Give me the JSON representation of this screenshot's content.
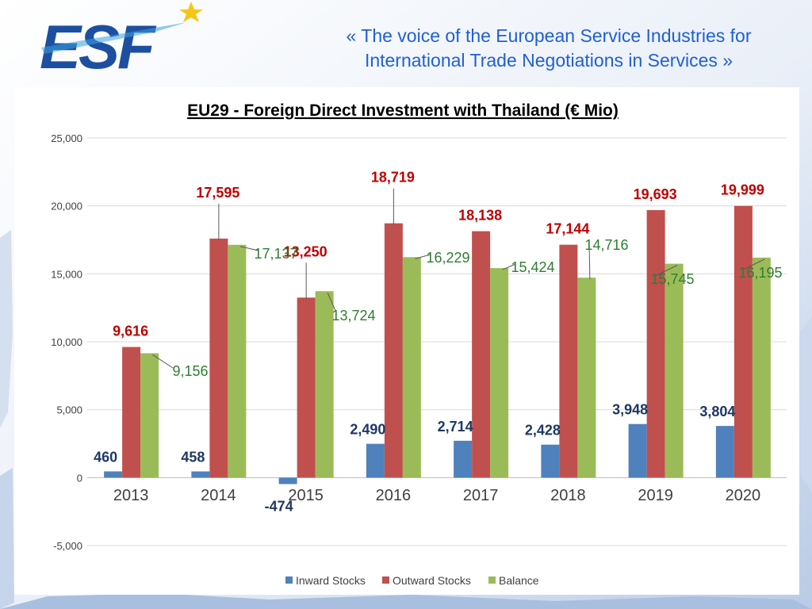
{
  "header": {
    "logo_text": "ESF",
    "tagline_line1": "«  The voice of the European Service Industries for",
    "tagline_line2": "International Trade Negotiations in Services  »"
  },
  "colors": {
    "inward": "#4f81bd",
    "outward": "#c0504d",
    "balance": "#9bbb59",
    "inward_label": "#1f3864",
    "outward_label": "#c00000",
    "balance_label": "#2e7d32",
    "tagline": "#1f5fd6",
    "logo_blue": "#1d4fa0",
    "star": "#f5c518"
  },
  "chart_data": {
    "type": "bar",
    "title": "EU29 - Foreign Direct Investment with Thailand (€ Mio)",
    "xlabel": "",
    "ylabel": "",
    "categories": [
      "2013",
      "2014",
      "2015",
      "2016",
      "2017",
      "2018",
      "2019",
      "2020"
    ],
    "series": [
      {
        "name": "Inward Stocks",
        "values": [
          460,
          458,
          -474,
          2490,
          2714,
          2428,
          3948,
          3804
        ],
        "labels": [
          "460",
          "458",
          "-474",
          "2,490",
          "2,714",
          "2,428",
          "3,948",
          "3,804"
        ]
      },
      {
        "name": "Outward Stocks",
        "values": [
          9616,
          17595,
          13250,
          18719,
          18138,
          17144,
          19693,
          19999
        ],
        "labels": [
          "9,616",
          "17,595",
          "13,250",
          "18,719",
          "18,138",
          "17,144",
          "19,693",
          "19,999"
        ]
      },
      {
        "name": "Balance",
        "values": [
          9156,
          17137,
          13724,
          16229,
          15424,
          14716,
          15745,
          16195
        ],
        "labels": [
          "9,156",
          "17,137",
          "13,724",
          "16,229",
          "15,424",
          "14,716",
          "15,745",
          "16,195"
        ]
      }
    ],
    "ylim": [
      -5000,
      25000
    ],
    "yticks": [
      -5000,
      0,
      5000,
      10000,
      15000,
      20000,
      25000
    ],
    "ytick_labels": [
      "-5,000",
      "0",
      "5,000",
      "10,000",
      "15,000",
      "20,000",
      "25,000"
    ],
    "grid": true,
    "legend_position": "bottom"
  }
}
